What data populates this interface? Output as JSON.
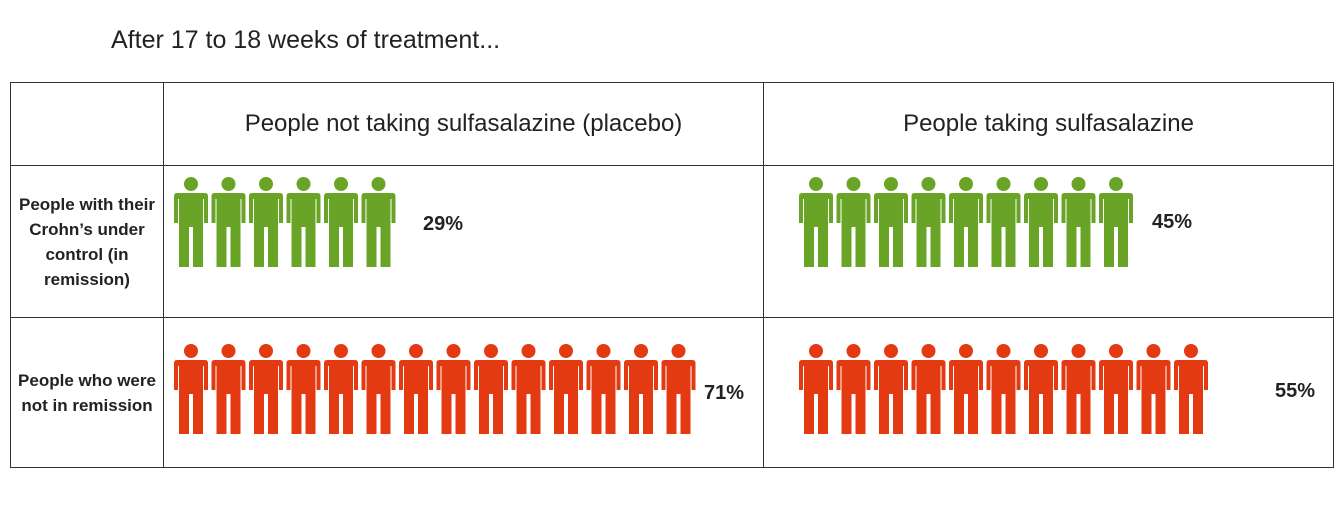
{
  "title": "After 17 to 18 weeks of treatment...",
  "colors": {
    "remission": "#6aa427",
    "not_remission": "#e33a12",
    "border": "#333333"
  },
  "icons": {
    "person": "person-icon"
  },
  "table": {
    "columns": [
      "People not taking sulfasalazine (placebo)",
      "People taking sulfasalazine"
    ],
    "rows": [
      {
        "label": "People with their Crohn’s under control (in remission)",
        "color": "#6aa427"
      },
      {
        "label": "People who were not in remission",
        "color": "#e33a12"
      }
    ]
  },
  "chart_data": {
    "type": "table",
    "title": "After 17 to 18 weeks of treatment...",
    "categories": [
      "People not taking sulfasalazine (placebo)",
      "People taking sulfasalazine"
    ],
    "series": [
      {
        "name": "People with their Crohn’s under control (in remission)",
        "values": [
          29,
          45
        ],
        "labels": [
          "29%",
          "45%"
        ],
        "icon_counts": [
          6,
          9
        ]
      },
      {
        "name": "People who were not in remission",
        "values": [
          71,
          55
        ],
        "labels": [
          "71%",
          "55%"
        ],
        "icon_counts": [
          14,
          11
        ]
      }
    ]
  }
}
